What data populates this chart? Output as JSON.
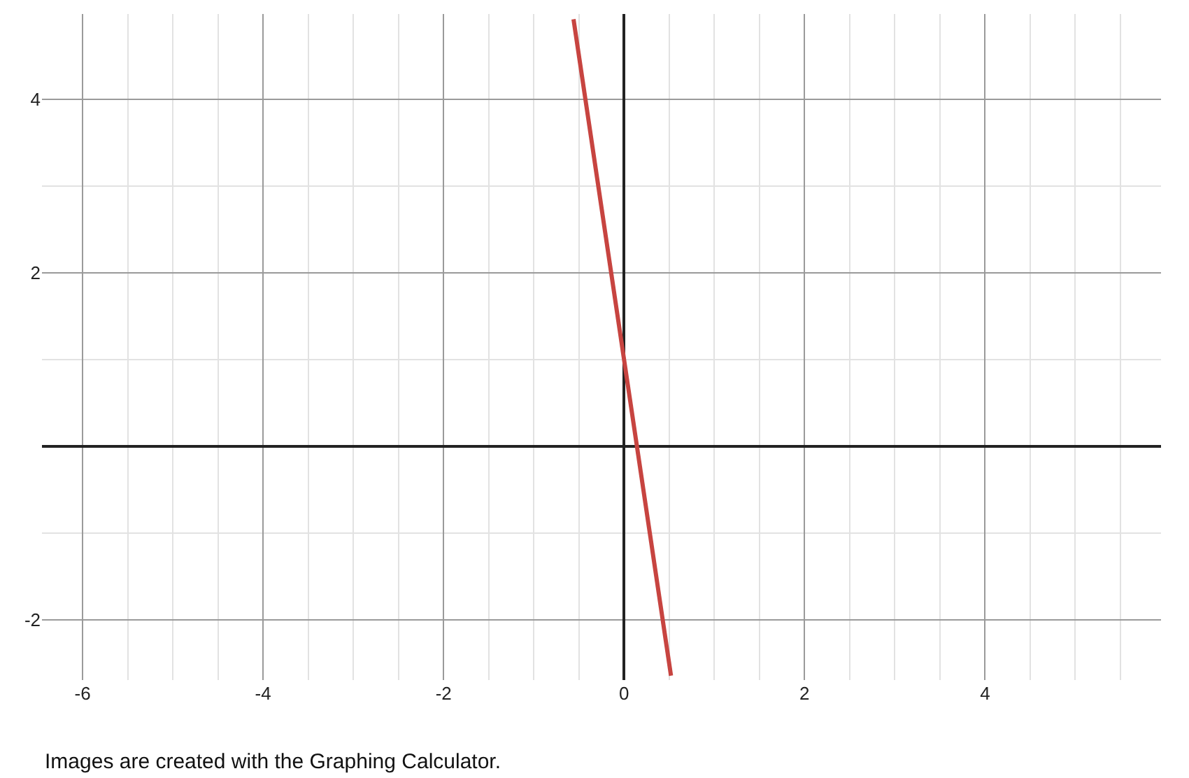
{
  "chart_data": {
    "type": "line",
    "x": [
      -0.56,
      0.52
    ],
    "series": [
      {
        "color": "#c74440",
        "values": [
          4.92,
          -2.64
        ]
      }
    ],
    "xlim": [
      -6.45,
      5.95
    ],
    "ylim": [
      -2.69,
      4.98
    ],
    "xticks": [
      -6,
      -4,
      -2,
      0,
      2,
      4
    ],
    "yticks": [
      -2,
      2,
      4
    ],
    "grid": true,
    "marker": "none",
    "line_style": "solid",
    "annotations": [
      "Images are created with the Graphing Calculator."
    ]
  }
}
